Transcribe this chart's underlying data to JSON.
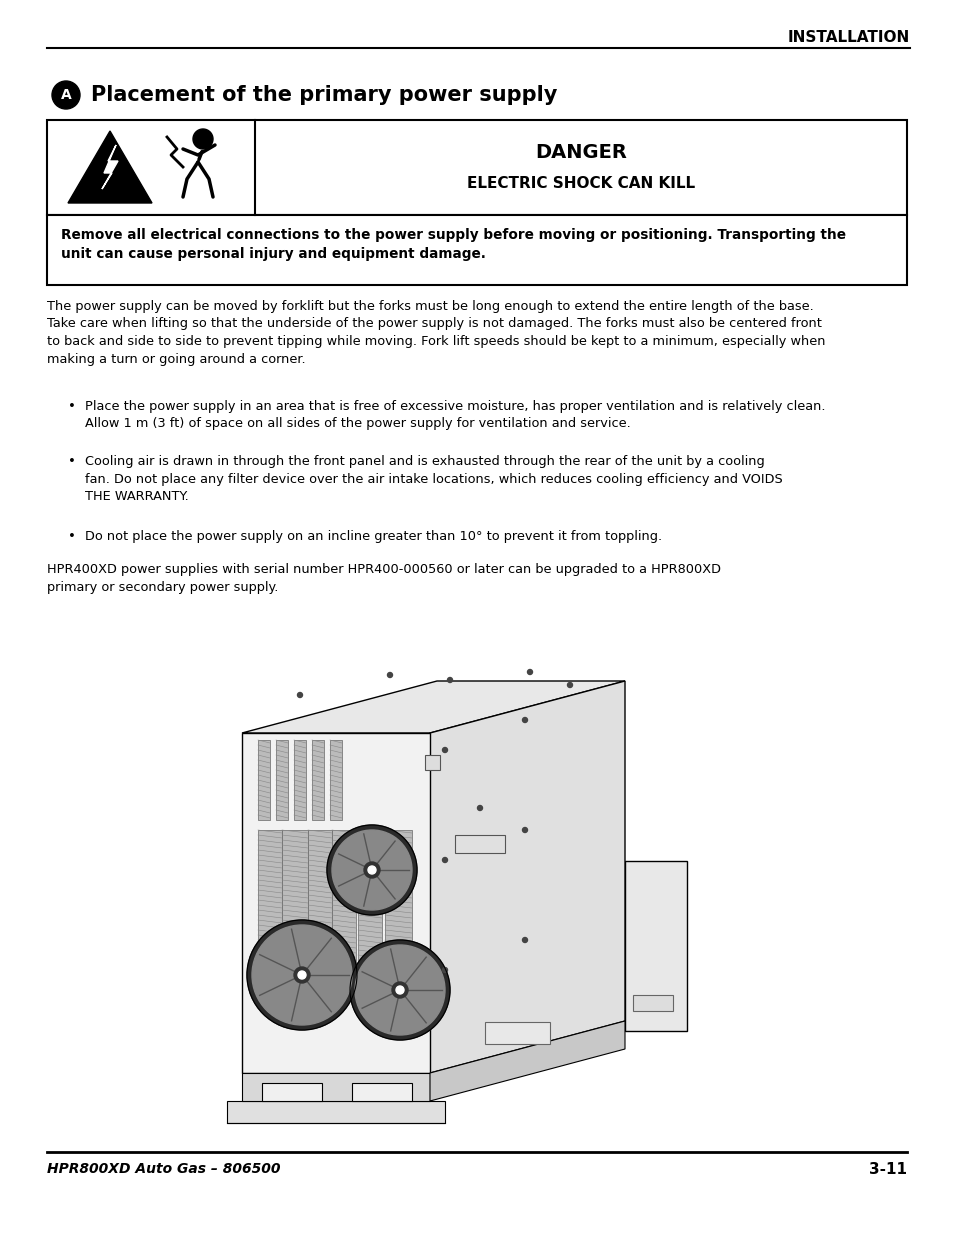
{
  "title_section": "INSTALLATION",
  "section_label": "A",
  "section_title": "Placement of the primary power supply",
  "danger_title": "DANGER",
  "danger_subtitle": "ELECTRIC SHOCK CAN KILL",
  "warning_text": "Remove all electrical connections to the power supply before moving or positioning. Transporting the\nunit can cause personal injury and equipment damage.",
  "body_text": "The power supply can be moved by forklift but the forks must be long enough to extend the entire length of the base.\nTake care when lifting so that the underside of the power supply is not damaged. The forks must also be centered front\nto back and side to side to prevent tipping while moving. Fork lift speeds should be kept to a minimum, especially when\nmaking a turn or going around a corner.",
  "bullet1": "Place the power supply in an area that is free of excessive moisture, has proper ventilation and is relatively clean.\nAllow 1 m (3 ft) of space on all sides of the power supply for ventilation and service.",
  "bullet2": "Cooling air is drawn in through the front panel and is exhausted through the rear of the unit by a cooling\nfan. Do not place any filter device over the air intake locations, which reduces cooling efficiency and VOIDS\nTHE WARRANTY.",
  "bullet3": "Do not place the power supply on an incline greater than 10° to prevent it from toppling.",
  "hpr_text": "HPR400XD power supplies with serial number HPR400-000560 or later can be upgraded to a HPR800XD\nprimary or secondary power supply.",
  "footer_left": "HPR800XD Auto Gas – 806500",
  "footer_right": "3-11",
  "bg_color": "#ffffff",
  "text_color": "#000000"
}
